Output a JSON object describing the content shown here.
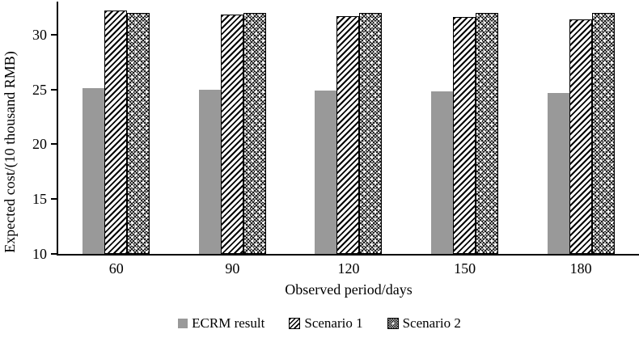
{
  "figure": {
    "background": "#ffffff",
    "text_color": "#000000",
    "axis_color": "#000000"
  },
  "chart_data": {
    "type": "bar",
    "title": "",
    "xlabel": "Observed period/days",
    "ylabel": "Expected cost/(10 thousand RMB)",
    "categories": [
      "60",
      "90",
      "120",
      "150",
      "180"
    ],
    "series": [
      {
        "name": "ECRM result",
        "pattern": "solid-gray",
        "color": "#999999",
        "values": [
          25.1,
          25.0,
          24.9,
          24.8,
          24.7
        ]
      },
      {
        "name": "Scenario 1",
        "pattern": "diagonal-hatch",
        "color": "#000000",
        "values": [
          32.2,
          31.8,
          31.7,
          31.6,
          31.4
        ]
      },
      {
        "name": "Scenario 2",
        "pattern": "dotted-grid",
        "color": "#000000",
        "values": [
          32.0,
          32.0,
          32.0,
          32.0,
          32.0
        ]
      }
    ],
    "ylim": [
      10,
      33
    ],
    "yticks": [
      10,
      15,
      20,
      25,
      30
    ],
    "grid": false,
    "legend_position": "bottom"
  }
}
